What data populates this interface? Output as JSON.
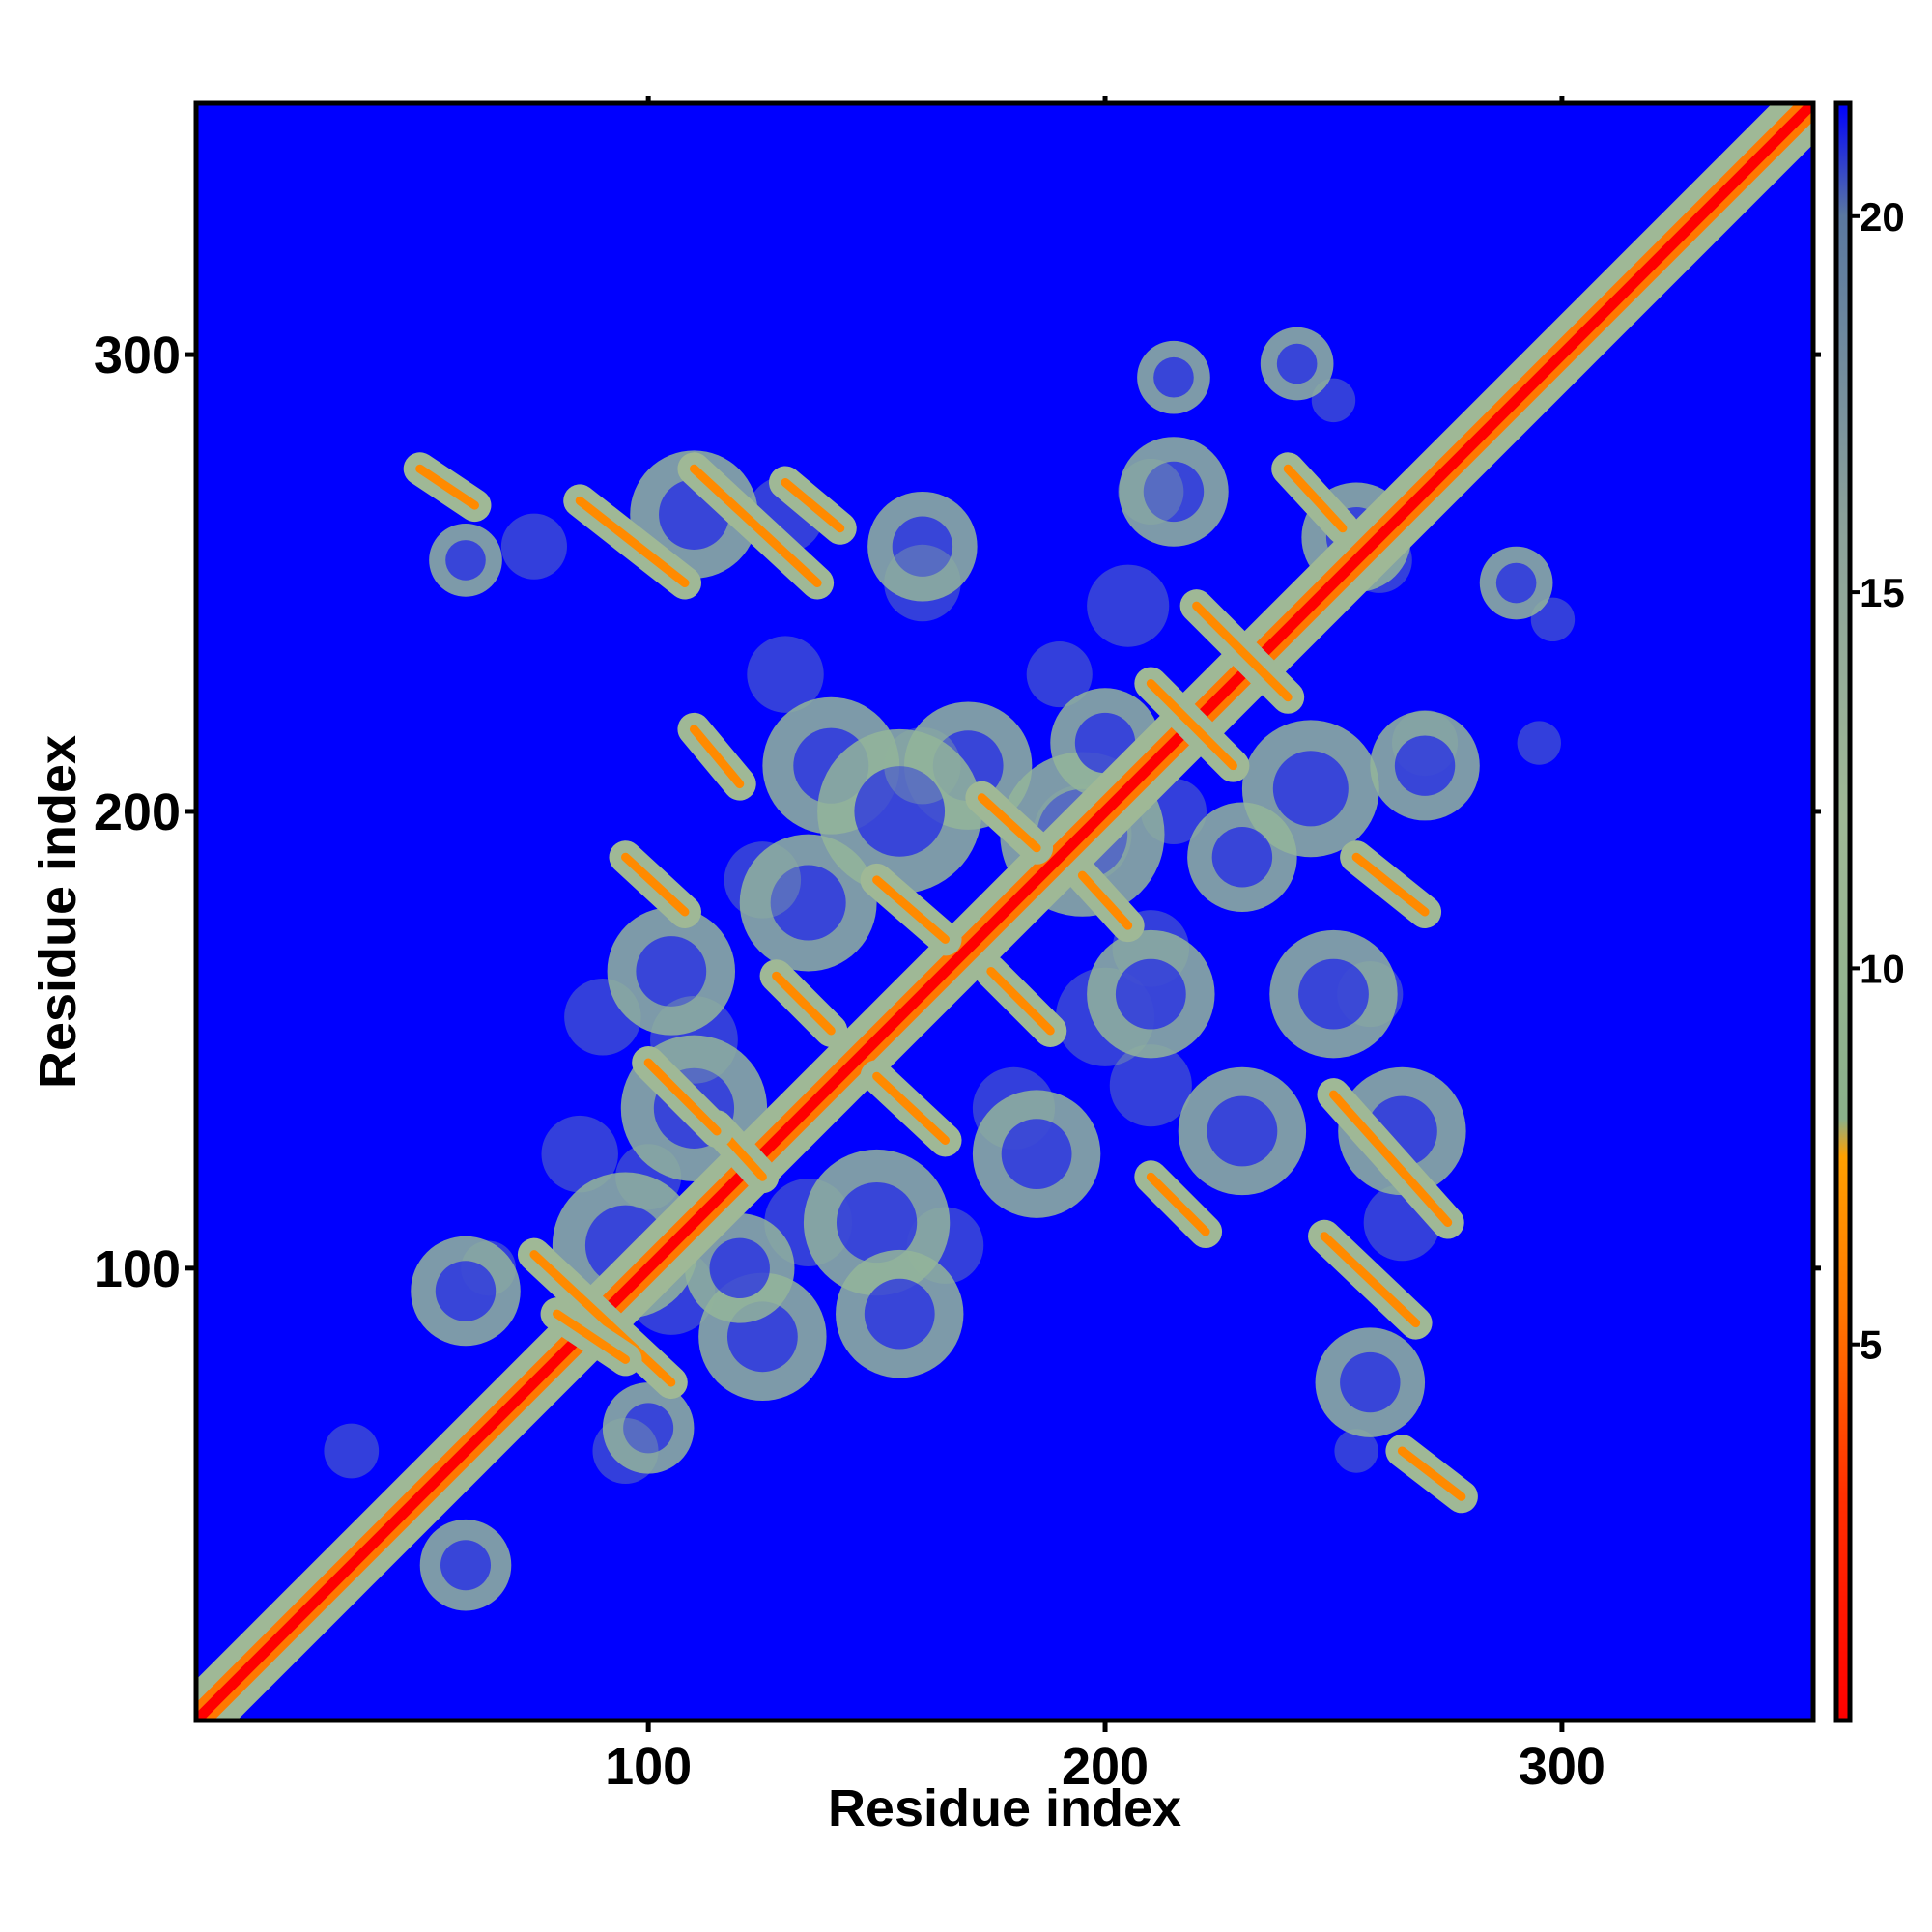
{
  "chart_data": {
    "type": "heatmap",
    "title": "",
    "xlabel": "Residue index",
    "ylabel": "Residue index",
    "xlim": [
      1,
      355
    ],
    "ylim": [
      1,
      355
    ],
    "x_ticks": [
      100,
      200,
      300
    ],
    "y_ticks": [
      100,
      200,
      300
    ],
    "x_tick_labels": [
      "100",
      "200",
      "300"
    ],
    "y_tick_labels": [
      "100",
      "200",
      "300"
    ],
    "colorbar": {
      "range": [
        0,
        21.5
      ],
      "ticks": [
        5,
        10,
        15,
        20
      ],
      "tick_labels": [
        "5",
        "10",
        "15",
        "20"
      ],
      "stops": [
        {
          "value": 0.0,
          "color": "#ff0000"
        },
        {
          "value": 3.0,
          "color": "#ff3000"
        },
        {
          "value": 5.5,
          "color": "#ff7800"
        },
        {
          "value": 7.5,
          "color": "#ffa000"
        },
        {
          "value": 8.0,
          "color": "#8ab08a"
        },
        {
          "value": 12.0,
          "color": "#9fb896"
        },
        {
          "value": 16.0,
          "color": "#8aa09a"
        },
        {
          "value": 20.0,
          "color": "#5a78a0"
        },
        {
          "value": 21.5,
          "color": "#0000ff"
        }
      ]
    },
    "background_color": "#0000ff",
    "contact_bands": [
      {
        "x0": 1,
        "y0": 1,
        "x1": 355,
        "y1": 355,
        "kind": "diagonal"
      },
      {
        "x0": 50,
        "y0": 275,
        "x1": 62,
        "y1": 267
      },
      {
        "x0": 85,
        "y0": 268,
        "x1": 108,
        "y1": 250
      },
      {
        "x0": 110,
        "y0": 275,
        "x1": 137,
        "y1": 250
      },
      {
        "x0": 110,
        "y0": 218,
        "x1": 120,
        "y1": 206
      },
      {
        "x0": 75,
        "y0": 103,
        "x1": 105,
        "y1": 75
      },
      {
        "x0": 80,
        "y0": 90,
        "x1": 95,
        "y1": 80
      },
      {
        "x0": 150,
        "y0": 185,
        "x1": 165,
        "y1": 172
      },
      {
        "x0": 128,
        "y0": 164,
        "x1": 140,
        "y1": 152
      },
      {
        "x0": 175,
        "y0": 165,
        "x1": 188,
        "y1": 152
      },
      {
        "x0": 173,
        "y0": 203,
        "x1": 185,
        "y1": 192
      },
      {
        "x0": 195,
        "y0": 186,
        "x1": 205,
        "y1": 175
      },
      {
        "x0": 150,
        "y0": 142,
        "x1": 165,
        "y1": 128
      },
      {
        "x0": 115,
        "y0": 131,
        "x1": 125,
        "y1": 120
      },
      {
        "x0": 210,
        "y0": 228,
        "x1": 228,
        "y1": 210
      },
      {
        "x0": 220,
        "y0": 245,
        "x1": 240,
        "y1": 225
      },
      {
        "x0": 210,
        "y0": 120,
        "x1": 222,
        "y1": 108
      },
      {
        "x0": 250,
        "y0": 138,
        "x1": 275,
        "y1": 110
      },
      {
        "x0": 248,
        "y0": 107,
        "x1": 268,
        "y1": 88
      },
      {
        "x0": 265,
        "y0": 60,
        "x1": 278,
        "y1": 50
      },
      {
        "x0": 100,
        "y0": 145,
        "x1": 115,
        "y1": 130
      },
      {
        "x0": 240,
        "y0": 275,
        "x1": 252,
        "y1": 262
      },
      {
        "x0": 130,
        "y0": 272,
        "x1": 142,
        "y1": 262
      },
      {
        "x0": 255,
        "y0": 190,
        "x1": 270,
        "y1": 178
      },
      {
        "x0": 95,
        "y0": 190,
        "x1": 108,
        "y1": 178
      }
    ],
    "contact_blobs": [
      {
        "x": 110,
        "y": 265,
        "r": 14
      },
      {
        "x": 160,
        "y": 258,
        "r": 12
      },
      {
        "x": 215,
        "y": 270,
        "r": 12
      },
      {
        "x": 255,
        "y": 260,
        "r": 12
      },
      {
        "x": 140,
        "y": 210,
        "r": 15
      },
      {
        "x": 170,
        "y": 210,
        "r": 14
      },
      {
        "x": 245,
        "y": 205,
        "r": 15
      },
      {
        "x": 270,
        "y": 210,
        "r": 12
      },
      {
        "x": 155,
        "y": 200,
        "r": 18
      },
      {
        "x": 195,
        "y": 195,
        "r": 18
      },
      {
        "x": 105,
        "y": 165,
        "r": 14
      },
      {
        "x": 135,
        "y": 180,
        "r": 15
      },
      {
        "x": 210,
        "y": 160,
        "r": 14
      },
      {
        "x": 250,
        "y": 160,
        "r": 14
      },
      {
        "x": 110,
        "y": 135,
        "r": 16
      },
      {
        "x": 150,
        "y": 110,
        "r": 16
      },
      {
        "x": 185,
        "y": 125,
        "r": 14
      },
      {
        "x": 230,
        "y": 130,
        "r": 14
      },
      {
        "x": 265,
        "y": 130,
        "r": 14
      },
      {
        "x": 95,
        "y": 105,
        "r": 16
      },
      {
        "x": 125,
        "y": 85,
        "r": 14
      },
      {
        "x": 155,
        "y": 90,
        "r": 14
      },
      {
        "x": 100,
        "y": 65,
        "r": 10
      },
      {
        "x": 258,
        "y": 75,
        "r": 12
      },
      {
        "x": 60,
        "y": 95,
        "r": 12
      },
      {
        "x": 120,
        "y": 100,
        "r": 12
      },
      {
        "x": 200,
        "y": 215,
        "r": 12
      },
      {
        "x": 230,
        "y": 190,
        "r": 12
      },
      {
        "x": 60,
        "y": 35,
        "r": 10
      },
      {
        "x": 60,
        "y": 255,
        "r": 8
      },
      {
        "x": 290,
        "y": 250,
        "r": 8
      },
      {
        "x": 215,
        "y": 295,
        "r": 8
      },
      {
        "x": 242,
        "y": 298,
        "r": 8
      }
    ]
  }
}
